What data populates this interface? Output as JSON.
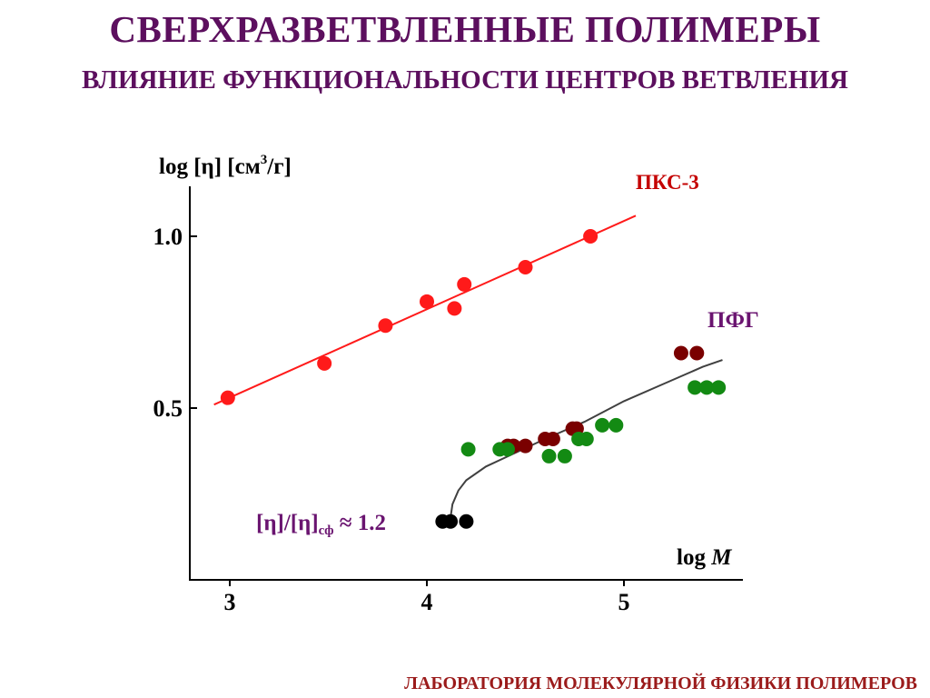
{
  "header": {
    "title": "СВЕРХРАЗВЕТВЛЕННЫЕ ПОЛИМЕРЫ",
    "subtitle": "ВЛИЯНИЕ ФУНКЦИОНАЛЬНОСТИ ЦЕНТРОВ ВЕТВЛЕНИЯ"
  },
  "footer": {
    "text": "ЛАБОРАТОРИЯ МОЛЕКУЛЯРНОЙ ФИЗИКИ ПОЛИМЕРОВ"
  },
  "colors": {
    "title": "#5c0f5e",
    "footer": "#9b1b1b",
    "pks3": "#ff1a1a",
    "pks3_label": "#c40000",
    "pfg_label": "#6a1470",
    "pfg_dark": "#7a0000",
    "pfg_green": "#138a13",
    "fit_curve": "#404040",
    "ratio_points": "#000000",
    "annotation": "#6a1470"
  },
  "chart_data": {
    "type": "scatter",
    "xlabel": "log M",
    "ylabel": "log [η]  [см3/г]",
    "xlim": [
      2.8,
      5.6
    ],
    "ylim": [
      0.0,
      1.15
    ],
    "xticks": [
      "3",
      "4",
      "5"
    ],
    "yticks": [
      "0.5",
      "1.0"
    ],
    "grid": false,
    "series": [
      {
        "name": "ПКС-3",
        "x": [
          2.99,
          3.48,
          3.79,
          4.0,
          4.14,
          4.19,
          4.5,
          4.83
        ],
        "y": [
          0.53,
          0.63,
          0.74,
          0.81,
          0.79,
          0.86,
          0.91,
          1.0
        ],
        "fit": {
          "x": [
            2.92,
            5.06
          ],
          "y": [
            0.51,
            1.06
          ]
        }
      },
      {
        "name": "ПФГ",
        "groups": [
          {
            "x": [
              4.41,
              4.44,
              4.5,
              4.6,
              4.64,
              4.74,
              4.76,
              5.29,
              5.37
            ],
            "y": [
              0.39,
              0.39,
              0.39,
              0.41,
              0.41,
              0.44,
              0.44,
              0.66,
              0.66
            ]
          },
          {
            "x": [
              4.21,
              4.37,
              4.41,
              4.62,
              4.7,
              4.77,
              4.81,
              4.89,
              4.96,
              5.36,
              5.42,
              5.48
            ],
            "y": [
              0.38,
              0.38,
              0.38,
              0.36,
              0.36,
              0.41,
              0.41,
              0.45,
              0.45,
              0.56,
              0.56,
              0.56
            ]
          },
          {
            "x": [
              4.08,
              4.12,
              4.2
            ],
            "y": [
              0.17,
              0.17,
              0.17
            ]
          }
        ],
        "fit_curve": {
          "x": [
            4.12,
            4.13,
            4.16,
            4.2,
            4.3,
            4.45,
            4.6,
            4.8,
            5.0,
            5.2,
            5.4,
            5.5
          ],
          "y": [
            0.18,
            0.22,
            0.26,
            0.29,
            0.33,
            0.37,
            0.41,
            0.46,
            0.52,
            0.57,
            0.62,
            0.64
          ]
        }
      }
    ],
    "labels": {
      "pks3": "ПКС-3",
      "pfg": "ПФГ"
    },
    "annotation": "[η]/[η]сф ≈ 1.2"
  }
}
